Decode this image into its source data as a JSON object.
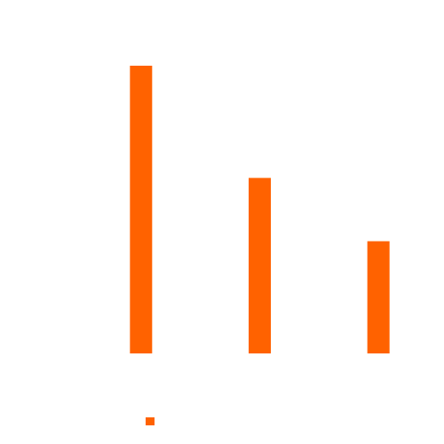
{
  "chart_data": {
    "type": "bar",
    "categories": [
      null,
      null,
      null
    ],
    "series": [
      {
        "color": "#ff6200",
        "values": [
          100,
          61,
          39
        ]
      }
    ],
    "ylim": [
      0,
      100
    ]
  }
}
